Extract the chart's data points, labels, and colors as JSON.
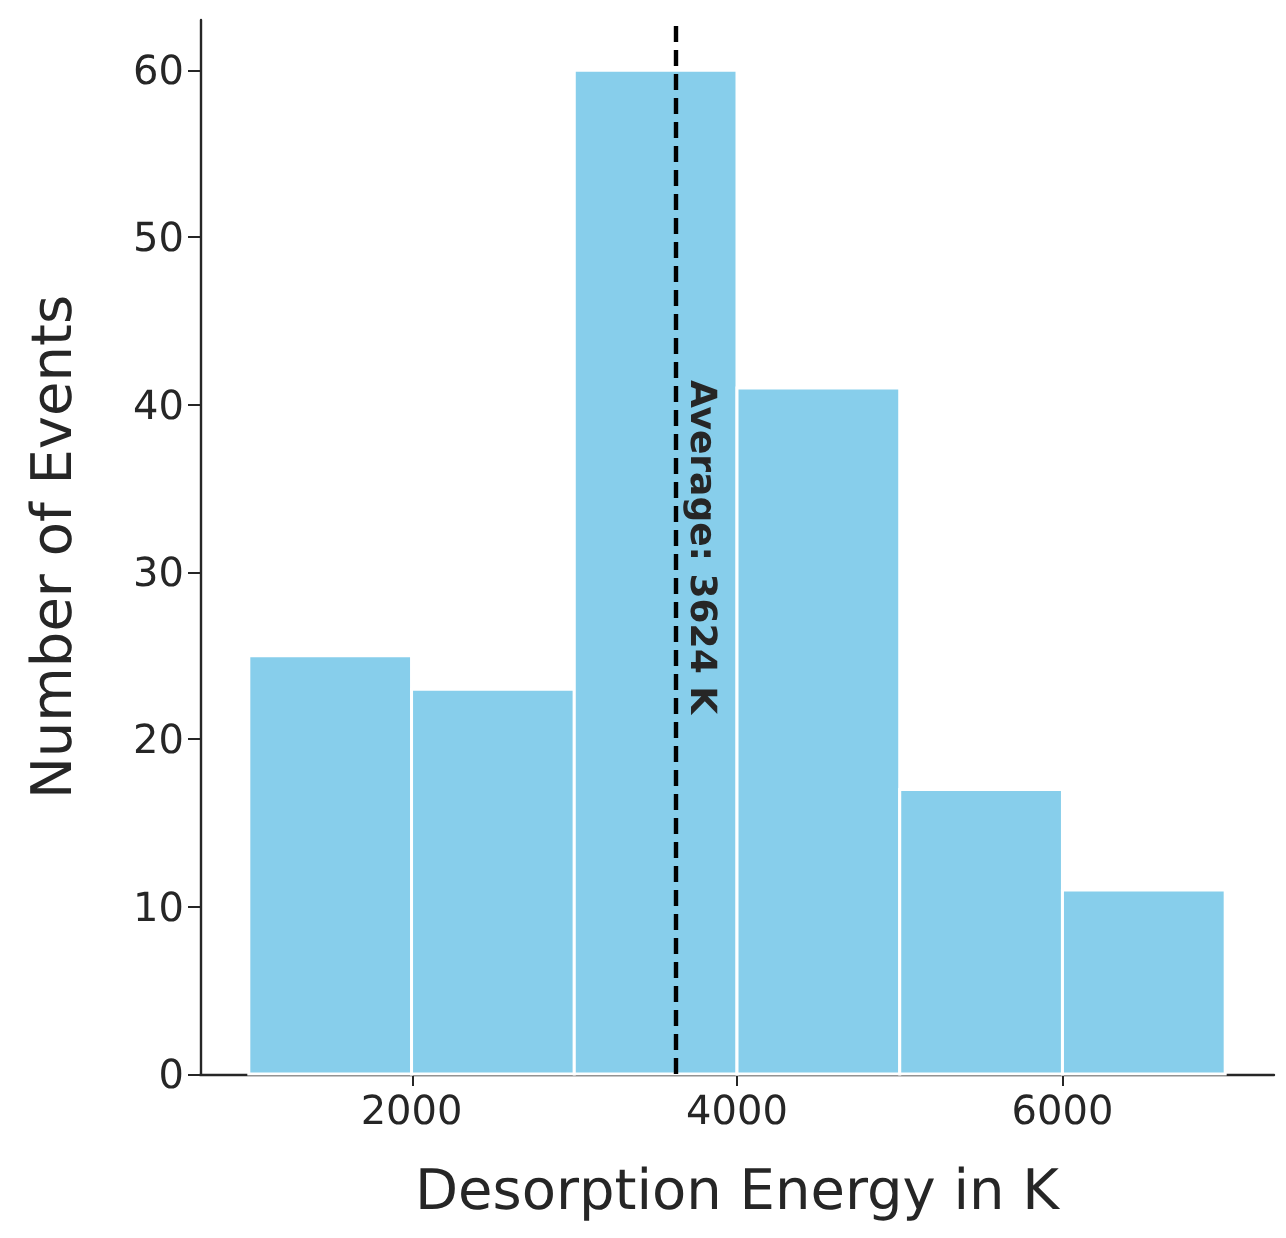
{
  "chart_data": {
    "type": "histogram",
    "xlabel": "Desorption Energy in K",
    "ylabel": "Number of Events",
    "bins": [
      1000,
      2000,
      3000,
      4000,
      5000,
      6000,
      7000
    ],
    "values": [
      25,
      23,
      60,
      41,
      17,
      11
    ],
    "color": "#87ceeb",
    "xlim": [
      700,
      7300
    ],
    "xticks": [
      2000,
      4000,
      6000
    ],
    "ylim": [
      0,
      63
    ],
    "yticks": [
      0,
      10,
      20,
      30,
      40,
      50,
      60
    ],
    "grid": false,
    "legend": false,
    "ref_lines": [
      {
        "axis": "x",
        "value": 3624,
        "label": "Average: 3624 K",
        "color": "#000000",
        "line_style": "dashed"
      }
    ]
  }
}
